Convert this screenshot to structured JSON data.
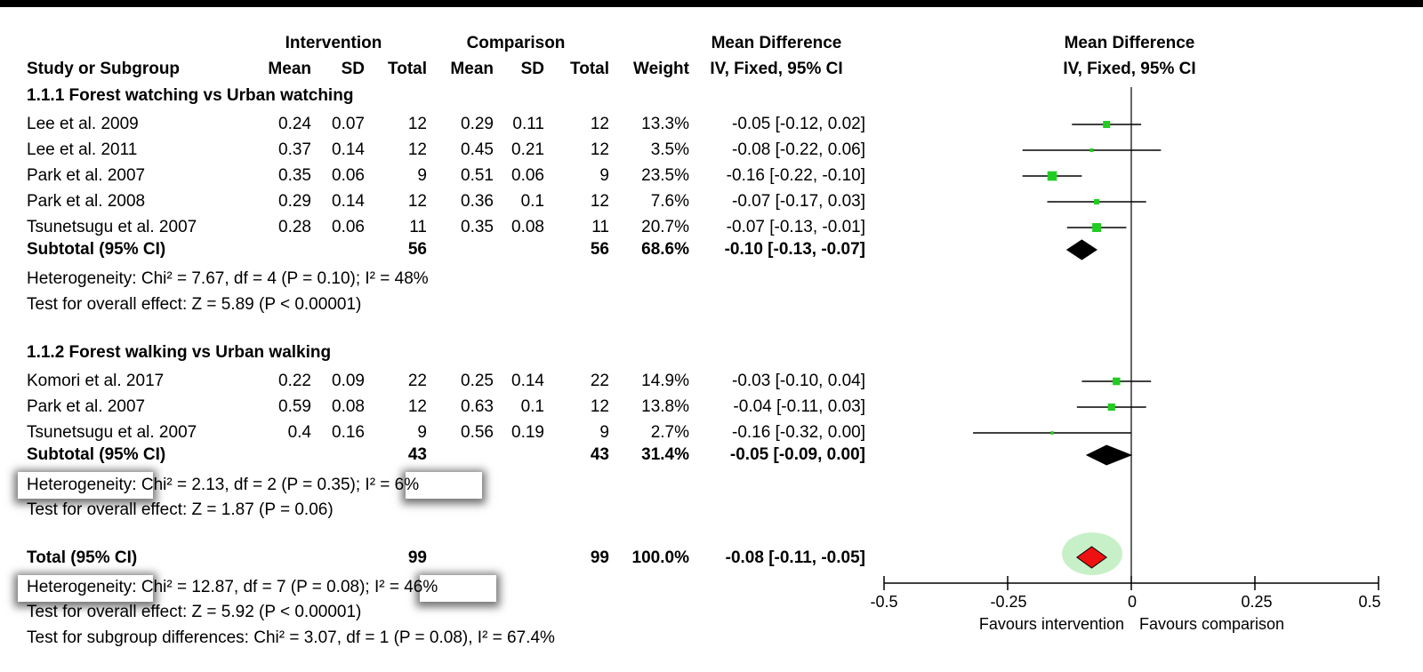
{
  "header": {
    "group_intervention": "Intervention",
    "group_comparison": "Comparison",
    "col_study": "Study or Subgroup",
    "col_mean_i": "Mean",
    "col_sd_i": "SD",
    "col_total_i": "Total",
    "col_mean_c": "Mean",
    "col_sd_c": "SD",
    "col_total_c": "Total",
    "col_weight": "Weight",
    "col_md_title": "Mean Difference",
    "col_md_method": "IV, Fixed, 95% CI",
    "plot_title": "Mean Difference",
    "plot_method": "IV, Fixed, 95% CI"
  },
  "subgroups": [
    {
      "title": "1.1.1 Forest watching vs Urban watching",
      "studies": [
        {
          "study": "Lee et al. 2009",
          "mean_i": "0.24",
          "sd_i": "0.07",
          "total_i": "12",
          "mean_c": "0.29",
          "sd_c": "0.11",
          "total_c": "12",
          "weight": "13.3%",
          "ci_text": "-0.05 [-0.12, 0.02]"
        },
        {
          "study": "Lee et al. 2011",
          "mean_i": "0.37",
          "sd_i": "0.14",
          "total_i": "12",
          "mean_c": "0.45",
          "sd_c": "0.21",
          "total_c": "12",
          "weight": "3.5%",
          "ci_text": "-0.08 [-0.22, 0.06]"
        },
        {
          "study": "Park et al. 2007",
          "mean_i": "0.35",
          "sd_i": "0.06",
          "total_i": "9",
          "mean_c": "0.51",
          "sd_c": "0.06",
          "total_c": "9",
          "weight": "23.5%",
          "ci_text": "-0.16 [-0.22, -0.10]"
        },
        {
          "study": "Park et al. 2008",
          "mean_i": "0.29",
          "sd_i": "0.14",
          "total_i": "12",
          "mean_c": "0.36",
          "sd_c": "0.1",
          "total_c": "12",
          "weight": "7.6%",
          "ci_text": "-0.07 [-0.17, 0.03]"
        },
        {
          "study": "Tsunetsugu et al. 2007",
          "mean_i": "0.28",
          "sd_i": "0.06",
          "total_i": "11",
          "mean_c": "0.35",
          "sd_c": "0.08",
          "total_c": "11",
          "weight": "20.7%",
          "ci_text": "-0.07 [-0.13, -0.01]"
        }
      ],
      "subtotal": {
        "label": "Subtotal (95% CI)",
        "total_i": "56",
        "total_c": "56",
        "weight": "68.6%",
        "ci_text": "-0.10 [-0.13, -0.07]"
      },
      "heterogeneity": {
        "a": "Heterogeneity: Chi² = 7.67, df = 4 (P = 0.10); I² = 48%"
      },
      "overall_effect": {
        "a": "Test for overall effect: Z = 5.89 (P < 0.00001)"
      }
    },
    {
      "title": "1.1.2 Forest walking vs Urban walking",
      "studies": [
        {
          "study": "Komori et al. 2017",
          "mean_i": "0.22",
          "sd_i": "0.09",
          "total_i": "22",
          "mean_c": "0.25",
          "sd_c": "0.14",
          "total_c": "22",
          "weight": "14.9%",
          "ci_text": "-0.03 [-0.10, 0.04]"
        },
        {
          "study": "Park et al. 2007",
          "mean_i": "0.59",
          "sd_i": "0.08",
          "total_i": "12",
          "mean_c": "0.63",
          "sd_c": "0.1",
          "total_c": "12",
          "weight": "13.8%",
          "ci_text": "-0.04 [-0.11, 0.03]"
        },
        {
          "study": "Tsunetsugu et al. 2007",
          "mean_i": "0.4",
          "sd_i": "0.16",
          "total_i": "9",
          "mean_c": "0.56",
          "sd_c": "0.19",
          "total_c": "9",
          "weight": "2.7%",
          "ci_text": "-0.16 [-0.32, 0.00]"
        }
      ],
      "subtotal": {
        "label": "Subtotal (95% CI)",
        "total_i": "43",
        "total_c": "43",
        "weight": "31.4%",
        "ci_text": "-0.05 [-0.09, 0.00]"
      },
      "heterogeneity": {
        "a": "Heterogeneity:",
        "b": "Chi² = 2.13, df = 2 (P = 0.35)",
        "c": ";",
        "d": "I² = 6%"
      },
      "overall_effect": {
        "a": "Test",
        "b": "for overall effect: Z = 1.87 (P = 0.06)"
      }
    }
  ],
  "total": {
    "label": "Total (95% CI)",
    "total_i": "99",
    "total_c": "99",
    "weight": "100.0%",
    "ci_text": "-0.08 [-0.11, -0.05]",
    "heterogeneity": {
      "a": "Heterogeneity:",
      "b": "Chi² = 12.87, df = 7 (P = 0.08)",
      "c": ";",
      "d": "I² = 46%"
    },
    "overall_effect": {
      "a": "Test",
      "b": "for overall effect: Z = 5.92 (P < 0.00001)"
    },
    "subgroup_diff": "Test for subgroup differences: Chi² = 3.07, df = 1 (P = 0.08), I² = 67.4%"
  },
  "axis": {
    "ticks": [
      "-0.5",
      "-0.25",
      "0",
      "0.25",
      "0.5"
    ],
    "favours_left": "Favours intervention",
    "favours_right": "Favours comparison"
  },
  "colors": {
    "study_marker": "#22cc22",
    "total_diamond": "#ee1111",
    "total_halo": "#c8f0c8",
    "subtotal_diamond": "#000000"
  },
  "chart_data": {
    "type": "forest",
    "xlim": [
      -0.5,
      0.5
    ],
    "x_ticks": [
      -0.5,
      -0.25,
      0,
      0.25,
      0.5
    ],
    "reference_line": 0,
    "studies": [
      {
        "study": "Lee et al. 2009",
        "subgroup": 1,
        "md": -0.05,
        "lo": -0.12,
        "hi": 0.02,
        "weight": 13.3
      },
      {
        "study": "Lee et al. 2011",
        "subgroup": 1,
        "md": -0.08,
        "lo": -0.22,
        "hi": 0.06,
        "weight": 3.5
      },
      {
        "study": "Park et al. 2007",
        "subgroup": 1,
        "md": -0.16,
        "lo": -0.22,
        "hi": -0.1,
        "weight": 23.5
      },
      {
        "study": "Park et al. 2008",
        "subgroup": 1,
        "md": -0.07,
        "lo": -0.17,
        "hi": 0.03,
        "weight": 7.6
      },
      {
        "study": "Tsunetsugu et al. 2007",
        "subgroup": 1,
        "md": -0.07,
        "lo": -0.13,
        "hi": -0.01,
        "weight": 20.7
      },
      {
        "study": "Komori et al. 2017",
        "subgroup": 2,
        "md": -0.03,
        "lo": -0.1,
        "hi": 0.04,
        "weight": 14.9
      },
      {
        "study": "Park et al. 2007",
        "subgroup": 2,
        "md": -0.04,
        "lo": -0.11,
        "hi": 0.03,
        "weight": 13.8
      },
      {
        "study": "Tsunetsugu et al. 2007",
        "subgroup": 2,
        "md": -0.16,
        "lo": -0.32,
        "hi": 0.0,
        "weight": 2.7
      }
    ],
    "subtotals": [
      {
        "subgroup": 1,
        "md": -0.1,
        "lo": -0.13,
        "hi": -0.07
      },
      {
        "subgroup": 2,
        "md": -0.05,
        "lo": -0.09,
        "hi": 0.0
      }
    ],
    "overall": {
      "md": -0.08,
      "lo": -0.11,
      "hi": -0.05
    }
  }
}
